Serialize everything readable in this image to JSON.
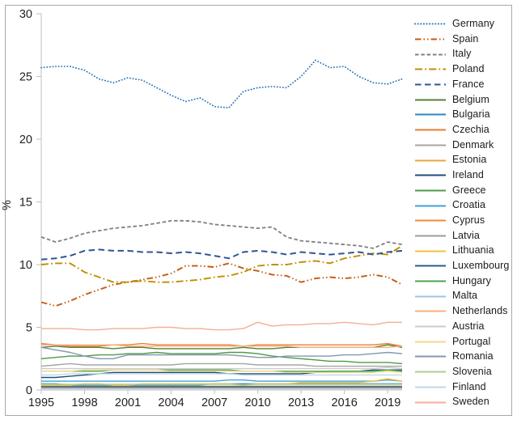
{
  "chart_data": {
    "type": "line",
    "title": "",
    "xlabel": "",
    "ylabel": "%",
    "ylim": [
      0,
      30
    ],
    "yticks": [
      0,
      5,
      10,
      15,
      20,
      25,
      30
    ],
    "xticks": [
      1995,
      1998,
      2001,
      2004,
      2007,
      2010,
      2013,
      2016,
      2019
    ],
    "grid": false,
    "legend_position": "right",
    "axis_color": "#bfbfbf",
    "tick_label_color": "#1f1f1f",
    "x": [
      1995,
      1996,
      1997,
      1998,
      1999,
      2000,
      2001,
      2002,
      2003,
      2004,
      2005,
      2006,
      2007,
      2008,
      2009,
      2010,
      2011,
      2012,
      2013,
      2014,
      2015,
      2016,
      2017,
      2018,
      2019,
      2020
    ],
    "series": [
      {
        "name": "Germany",
        "color": "#2E75B6",
        "dash": "dot",
        "width": 1.8,
        "values": [
          25.7,
          25.8,
          25.8,
          25.5,
          24.8,
          24.5,
          24.9,
          24.7,
          24.1,
          23.5,
          23.0,
          23.3,
          22.6,
          22.5,
          23.8,
          24.1,
          24.2,
          24.1,
          25.0,
          26.3,
          25.7,
          25.8,
          25.0,
          24.5,
          24.4,
          24.8
        ]
      },
      {
        "name": "Spain",
        "color": "#C55A11",
        "dash": "dashdotdot",
        "width": 1.9,
        "values": [
          7.0,
          6.7,
          7.1,
          7.6,
          8.0,
          8.4,
          8.6,
          8.8,
          9.0,
          9.3,
          9.9,
          9.9,
          9.8,
          10.1,
          9.7,
          9.5,
          9.2,
          9.1,
          8.6,
          8.9,
          9.0,
          8.9,
          9.0,
          9.2,
          9.0,
          8.4
        ]
      },
      {
        "name": "Italy",
        "color": "#7F7F7F",
        "dash": "dash",
        "width": 1.8,
        "values": [
          12.2,
          11.8,
          12.1,
          12.5,
          12.7,
          12.9,
          13.0,
          13.1,
          13.3,
          13.5,
          13.5,
          13.4,
          13.2,
          13.1,
          13.0,
          12.9,
          13.0,
          12.2,
          11.9,
          11.8,
          11.7,
          11.6,
          11.5,
          11.3,
          11.8,
          11.6
        ]
      },
      {
        "name": "Poland",
        "color": "#BF8F00",
        "dash": "dashdot",
        "width": 1.9,
        "values": [
          10.0,
          10.1,
          10.1,
          9.4,
          9.0,
          8.6,
          8.6,
          8.7,
          8.6,
          8.6,
          8.7,
          8.8,
          9.0,
          9.1,
          9.4,
          9.9,
          10.0,
          10.0,
          10.2,
          10.3,
          10.1,
          10.5,
          10.7,
          10.9,
          10.8,
          11.5
        ]
      },
      {
        "name": "France",
        "color": "#2F5597",
        "dash": "longdash",
        "width": 2.0,
        "values": [
          10.4,
          10.5,
          10.7,
          11.1,
          11.2,
          11.1,
          11.1,
          11.0,
          11.0,
          10.9,
          11.0,
          10.9,
          10.7,
          10.5,
          11.0,
          11.1,
          11.0,
          10.8,
          11.0,
          10.9,
          10.8,
          10.9,
          11.0,
          10.8,
          11.0,
          11.1
        ]
      },
      {
        "name": "Belgium",
        "color": "#548235",
        "dash": "solid",
        "width": 1.4,
        "values": [
          3.4,
          3.5,
          3.4,
          3.4,
          3.4,
          3.3,
          3.4,
          3.4,
          3.3,
          3.3,
          3.3,
          3.3,
          3.3,
          3.3,
          3.4,
          3.3,
          3.3,
          3.4,
          3.4,
          3.4,
          3.4,
          3.4,
          3.4,
          3.4,
          3.6,
          3.4
        ]
      },
      {
        "name": "Bulgaria",
        "color": "#2E86C1",
        "dash": "solid",
        "width": 1.4,
        "values": [
          0.5,
          0.5,
          0.4,
          0.4,
          0.4,
          0.4,
          0.4,
          0.4,
          0.4,
          0.4,
          0.4,
          0.4,
          0.5,
          0.5,
          0.5,
          0.5,
          0.5,
          0.5,
          0.5,
          0.5,
          0.5,
          0.5,
          0.5,
          0.5,
          0.5,
          0.5
        ]
      },
      {
        "name": "Czechia",
        "color": "#ED7D31",
        "dash": "solid",
        "width": 1.4,
        "values": [
          3.7,
          3.6,
          3.5,
          3.5,
          3.5,
          3.6,
          3.6,
          3.7,
          3.6,
          3.6,
          3.6,
          3.6,
          3.6,
          3.6,
          3.5,
          3.6,
          3.6,
          3.6,
          3.6,
          3.6,
          3.6,
          3.6,
          3.6,
          3.6,
          3.7,
          3.5
        ]
      },
      {
        "name": "Denmark",
        "color": "#A5A5A5",
        "dash": "solid",
        "width": 1.4,
        "values": [
          1.9,
          2.0,
          2.1,
          2.0,
          2.0,
          2.0,
          2.0,
          2.0,
          2.0,
          2.0,
          2.1,
          2.1,
          2.1,
          2.1,
          2.1,
          2.0,
          2.0,
          2.0,
          2.0,
          1.9,
          1.9,
          1.9,
          1.9,
          1.9,
          1.9,
          1.9
        ]
      },
      {
        "name": "Estonia",
        "color": "#E3A73B",
        "dash": "solid",
        "width": 1.4,
        "values": [
          0.3,
          0.3,
          0.3,
          0.3,
          0.3,
          0.3,
          0.3,
          0.3,
          0.3,
          0.3,
          0.3,
          0.3,
          0.3,
          0.3,
          0.3,
          0.3,
          0.3,
          0.3,
          0.3,
          0.3,
          0.3,
          0.3,
          0.3,
          0.3,
          0.3,
          0.3
        ]
      },
      {
        "name": "Ireland",
        "color": "#1F4E79",
        "dash": "solid",
        "width": 1.4,
        "values": [
          1.0,
          1.0,
          1.1,
          1.2,
          1.3,
          1.4,
          1.4,
          1.4,
          1.4,
          1.4,
          1.4,
          1.4,
          1.4,
          1.3,
          1.3,
          1.3,
          1.3,
          1.3,
          1.3,
          1.4,
          1.5,
          1.5,
          1.5,
          1.6,
          1.6,
          1.6
        ]
      },
      {
        "name": "Greece",
        "color": "#4E9A47",
        "dash": "solid",
        "width": 1.4,
        "values": [
          2.5,
          2.6,
          2.7,
          2.7,
          2.8,
          2.8,
          2.9,
          2.9,
          3.0,
          2.9,
          2.9,
          2.9,
          2.9,
          3.0,
          3.0,
          2.9,
          2.7,
          2.6,
          2.5,
          2.4,
          2.3,
          2.3,
          2.2,
          2.2,
          2.2,
          2.1
        ]
      },
      {
        "name": "Croatia",
        "color": "#41A0D8",
        "dash": "solid",
        "width": 1.4,
        "values": [
          0.7,
          0.7,
          0.7,
          0.7,
          0.7,
          0.7,
          0.7,
          0.7,
          0.7,
          0.7,
          0.7,
          0.7,
          0.7,
          0.8,
          0.8,
          0.7,
          0.7,
          0.7,
          0.7,
          0.7,
          0.7,
          0.7,
          0.7,
          0.7,
          0.8,
          0.7
        ]
      },
      {
        "name": "Cyprus",
        "color": "#F18A34",
        "dash": "solid",
        "width": 1.4,
        "values": [
          0.2,
          0.2,
          0.2,
          0.2,
          0.2,
          0.2,
          0.2,
          0.2,
          0.2,
          0.2,
          0.2,
          0.2,
          0.2,
          0.2,
          0.2,
          0.2,
          0.2,
          0.2,
          0.2,
          0.2,
          0.2,
          0.2,
          0.2,
          0.2,
          0.2,
          0.2
        ]
      },
      {
        "name": "Latvia",
        "color": "#9C9C9C",
        "dash": "solid",
        "width": 1.4,
        "values": [
          0.3,
          0.3,
          0.3,
          0.3,
          0.3,
          0.3,
          0.3,
          0.3,
          0.3,
          0.3,
          0.3,
          0.3,
          0.3,
          0.3,
          0.3,
          0.3,
          0.3,
          0.3,
          0.3,
          0.3,
          0.3,
          0.3,
          0.3,
          0.3,
          0.3,
          0.3
        ]
      },
      {
        "name": "Lithuania",
        "color": "#F2C140",
        "dash": "solid",
        "width": 1.4,
        "values": [
          0.4,
          0.4,
          0.4,
          0.5,
          0.5,
          0.4,
          0.4,
          0.5,
          0.5,
          0.5,
          0.5,
          0.5,
          0.5,
          0.5,
          0.4,
          0.5,
          0.5,
          0.5,
          0.6,
          0.6,
          0.6,
          0.6,
          0.6,
          0.7,
          0.9,
          0.7
        ]
      },
      {
        "name": "Luxembourg",
        "color": "#255E91",
        "dash": "solid",
        "width": 1.4,
        "values": [
          0.25,
          0.25,
          0.25,
          0.25,
          0.25,
          0.25,
          0.25,
          0.25,
          0.25,
          0.25,
          0.25,
          0.25,
          0.25,
          0.25,
          0.25,
          0.25,
          0.25,
          0.25,
          0.25,
          0.25,
          0.25,
          0.25,
          0.25,
          0.25,
          0.25,
          0.25
        ]
      },
      {
        "name": "Hungary",
        "color": "#4CA64C",
        "dash": "solid",
        "width": 1.4,
        "values": [
          1.5,
          1.5,
          1.5,
          1.5,
          1.5,
          1.6,
          1.6,
          1.6,
          1.6,
          1.6,
          1.6,
          1.6,
          1.6,
          1.6,
          1.5,
          1.5,
          1.5,
          1.5,
          1.5,
          1.5,
          1.5,
          1.5,
          1.5,
          1.5,
          1.6,
          1.5
        ]
      },
      {
        "name": "Malta",
        "color": "#9DC3E6",
        "dash": "solid",
        "width": 1.4,
        "values": [
          0.1,
          0.1,
          0.1,
          0.1,
          0.1,
          0.1,
          0.1,
          0.1,
          0.1,
          0.1,
          0.1,
          0.1,
          0.1,
          0.1,
          0.1,
          0.1,
          0.1,
          0.1,
          0.1,
          0.1,
          0.1,
          0.1,
          0.1,
          0.1,
          0.1,
          0.1
        ]
      },
      {
        "name": "Netherlands",
        "color": "#F4B183",
        "dash": "solid",
        "width": 1.4,
        "values": [
          3.6,
          3.6,
          3.6,
          3.6,
          3.6,
          3.6,
          3.5,
          3.5,
          3.5,
          3.5,
          3.5,
          3.5,
          3.5,
          3.5,
          3.5,
          3.5,
          3.5,
          3.5,
          3.4,
          3.4,
          3.4,
          3.4,
          3.4,
          3.4,
          3.4,
          3.5
        ]
      },
      {
        "name": "Austria",
        "color": "#CBCBCB",
        "dash": "solid",
        "width": 1.4,
        "values": [
          1.7,
          1.7,
          1.7,
          1.7,
          1.7,
          1.7,
          1.7,
          1.7,
          1.7,
          1.7,
          1.7,
          1.7,
          1.7,
          1.7,
          1.7,
          1.7,
          1.7,
          1.7,
          1.7,
          1.7,
          1.7,
          1.7,
          1.7,
          1.7,
          1.8,
          1.7
        ]
      },
      {
        "name": "Portugal",
        "color": "#F5D98B",
        "dash": "solid",
        "width": 1.4,
        "values": [
          1.5,
          1.5,
          1.5,
          1.6,
          1.6,
          1.6,
          1.6,
          1.6,
          1.6,
          1.5,
          1.5,
          1.5,
          1.5,
          1.5,
          1.5,
          1.5,
          1.5,
          1.4,
          1.4,
          1.4,
          1.4,
          1.4,
          1.4,
          1.4,
          1.5,
          1.4
        ]
      },
      {
        "name": "Romania",
        "color": "#8496B0",
        "dash": "solid",
        "width": 1.4,
        "values": [
          3.4,
          3.2,
          3.0,
          2.7,
          2.5,
          2.5,
          2.8,
          2.8,
          2.8,
          2.8,
          2.8,
          2.8,
          2.8,
          2.8,
          2.7,
          2.6,
          2.6,
          2.7,
          2.7,
          2.7,
          2.7,
          2.8,
          2.8,
          2.9,
          3.0,
          2.9
        ]
      },
      {
        "name": "Slovenia",
        "color": "#A9D18E",
        "dash": "solid",
        "width": 1.4,
        "values": [
          0.45,
          0.45,
          0.45,
          0.45,
          0.45,
          0.45,
          0.45,
          0.45,
          0.45,
          0.45,
          0.45,
          0.45,
          0.45,
          0.45,
          0.4,
          0.45,
          0.45,
          0.45,
          0.45,
          0.45,
          0.45,
          0.45,
          0.45,
          0.45,
          0.45,
          0.45
        ]
      },
      {
        "name": "Finland",
        "color": "#BDD7EE",
        "dash": "solid",
        "width": 1.4,
        "values": [
          1.2,
          1.2,
          1.3,
          1.3,
          1.3,
          1.3,
          1.3,
          1.3,
          1.3,
          1.3,
          1.3,
          1.3,
          1.3,
          1.3,
          1.2,
          1.2,
          1.2,
          1.2,
          1.2,
          1.2,
          1.2,
          1.2,
          1.2,
          1.2,
          1.2,
          1.2
        ]
      },
      {
        "name": "Sweden",
        "color": "#F5AD97",
        "dash": "solid",
        "width": 1.4,
        "values": [
          4.9,
          4.9,
          4.9,
          4.8,
          4.8,
          4.9,
          4.9,
          4.9,
          5.0,
          5.0,
          4.9,
          4.9,
          4.8,
          4.8,
          4.9,
          5.4,
          5.1,
          5.2,
          5.2,
          5.3,
          5.3,
          5.4,
          5.3,
          5.2,
          5.4,
          5.4
        ]
      }
    ]
  }
}
